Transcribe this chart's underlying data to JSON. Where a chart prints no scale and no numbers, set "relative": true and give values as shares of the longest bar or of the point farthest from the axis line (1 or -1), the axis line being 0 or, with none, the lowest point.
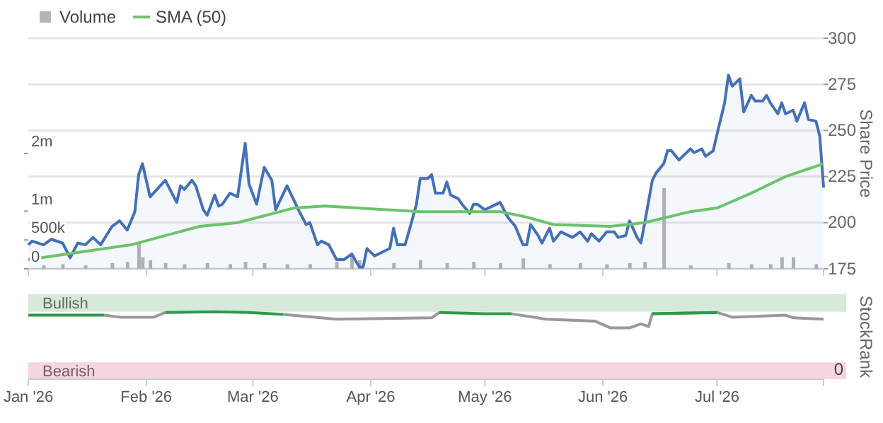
{
  "chart_data": [
    {
      "type": "area",
      "ylabel": "Share Price",
      "tick_labels": "y",
      "grid": "y",
      "legend": "top left",
      "xlim": [
        "2026-01-01",
        "2026-07-29"
      ],
      "xticks": [
        {
          "value": "2026-01-01",
          "label": null
        },
        {
          "value": "2026-02-01",
          "label": null
        },
        {
          "value": "2026-03-01",
          "label": null
        },
        {
          "value": "2026-04-01",
          "label": null
        },
        {
          "value": "2026-05-01",
          "label": null
        },
        {
          "value": "2026-06-01",
          "label": null
        },
        {
          "value": "2026-07-01",
          "label": null
        }
      ],
      "ylim": [
        175,
        300
      ],
      "yticks": [
        175,
        200,
        225,
        250,
        275,
        300
      ],
      "y2lim": [
        0,
        4000000
      ],
      "y2ticks": [
        {
          "value": 0,
          "label": "0"
        },
        {
          "value": 500000,
          "label": "500k"
        },
        {
          "value": 1000000,
          "label": "1m"
        },
        {
          "value": 2000000,
          "label": "2m"
        }
      ],
      "series": [
        {
          "type": "bar",
          "name": "Volume",
          "color": "#b4b4b8",
          "axis": "y2",
          "x": [
            "2026-01-05",
            "2026-01-10",
            "2026-01-16",
            "2026-01-23",
            "2026-01-27",
            "2026-01-30",
            "2026-01-31",
            "2026-02-02",
            "2026-02-06",
            "2026-02-11",
            "2026-02-17",
            "2026-02-23",
            "2026-02-27",
            "2026-03-04",
            "2026-03-10",
            "2026-03-16",
            "2026-03-23",
            "2026-03-27",
            "2026-03-29",
            "2026-04-07",
            "2026-04-14",
            "2026-04-21",
            "2026-04-28",
            "2026-05-05",
            "2026-05-11",
            "2026-05-18",
            "2026-05-26",
            "2026-06-02",
            "2026-06-08",
            "2026-06-12",
            "2026-06-17",
            "2026-06-24",
            "2026-07-04",
            "2026-07-10",
            "2026-07-15",
            "2026-07-18",
            "2026-07-21",
            "2026-07-27"
          ],
          "values": [
            60000,
            80000,
            60000,
            100000,
            120000,
            450000,
            200000,
            150000,
            100000,
            80000,
            100000,
            80000,
            120000,
            100000,
            80000,
            80000,
            120000,
            250000,
            150000,
            100000,
            150000,
            100000,
            120000,
            100000,
            180000,
            80000,
            100000,
            80000,
            100000,
            120000,
            1400000,
            60000,
            100000,
            80000,
            80000,
            200000,
            200000,
            80000
          ]
        },
        {
          "color": "#4470b8",
          "x": [
            "2026-01-01",
            "2026-01-02",
            "2026-01-05",
            "2026-01-07",
            "2026-01-10",
            "2026-01-12",
            "2026-01-14",
            "2026-01-16",
            "2026-01-18",
            "2026-01-20",
            "2026-01-23",
            "2026-01-25",
            "2026-01-27",
            "2026-01-29",
            "2026-01-30",
            "2026-01-31",
            "2026-02-02",
            "2026-02-06",
            "2026-02-09",
            "2026-02-10",
            "2026-02-11",
            "2026-02-13",
            "2026-02-14",
            "2026-02-16",
            "2026-02-17",
            "2026-02-19",
            "2026-02-20",
            "2026-02-21",
            "2026-02-23",
            "2026-02-25",
            "2026-02-27",
            "2026-02-28",
            "2026-03-02",
            "2026-03-04",
            "2026-03-06",
            "2026-03-07",
            "2026-03-10",
            "2026-03-13",
            "2026-03-15",
            "2026-03-16",
            "2026-03-18",
            "2026-03-19",
            "2026-03-21",
            "2026-03-23",
            "2026-03-25",
            "2026-03-27",
            "2026-03-29",
            "2026-03-30",
            "2026-03-31",
            "2026-04-02",
            "2026-04-06",
            "2026-04-07",
            "2026-04-08",
            "2026-04-10",
            "2026-04-11",
            "2026-04-13",
            "2026-04-14",
            "2026-04-16",
            "2026-04-17",
            "2026-04-18",
            "2026-04-20",
            "2026-04-21",
            "2026-04-22",
            "2026-04-24",
            "2026-04-25",
            "2026-04-27",
            "2026-04-28",
            "2026-04-29",
            "2026-05-01",
            "2026-05-03",
            "2026-05-05",
            "2026-05-07",
            "2026-05-09",
            "2026-05-11",
            "2026-05-12",
            "2026-05-13",
            "2026-05-15",
            "2026-05-16",
            "2026-05-18",
            "2026-05-19",
            "2026-05-21",
            "2026-05-24",
            "2026-05-26",
            "2026-05-28",
            "2026-05-29",
            "2026-05-31",
            "2026-06-02",
            "2026-06-04",
            "2026-06-05",
            "2026-06-07",
            "2026-06-08",
            "2026-06-10",
            "2026-06-11",
            "2026-06-12",
            "2026-06-14",
            "2026-06-15",
            "2026-06-17",
            "2026-06-18",
            "2026-06-19",
            "2026-06-21",
            "2026-06-24",
            "2026-06-25",
            "2026-06-27",
            "2026-06-28",
            "2026-06-30",
            "2026-07-01",
            "2026-07-03",
            "2026-07-04",
            "2026-07-05",
            "2026-07-07",
            "2026-07-08",
            "2026-07-10",
            "2026-07-11",
            "2026-07-13",
            "2026-07-14",
            "2026-07-15",
            "2026-07-17",
            "2026-07-18",
            "2026-07-19",
            "2026-07-21",
            "2026-07-22",
            "2026-07-24",
            "2026-07-25",
            "2026-07-27",
            "2026-07-28",
            "2026-07-29"
          ],
          "values": [
            188,
            190,
            188,
            191,
            189,
            181,
            189,
            188,
            192,
            188,
            198,
            201,
            196,
            206,
            226,
            232,
            214,
            223,
            211,
            220,
            218,
            223,
            220,
            207,
            204,
            215,
            209,
            210,
            216,
            214,
            243,
            221,
            210,
            230,
            223,
            207,
            220,
            207,
            199,
            200,
            188,
            190,
            188,
            180,
            180,
            183,
            176,
            176,
            186,
            182,
            186,
            197,
            188,
            188,
            195,
            210,
            224,
            224,
            226,
            216,
            216,
            222,
            215,
            213,
            210,
            205,
            210,
            210,
            207,
            209,
            211,
            203,
            198,
            188,
            188,
            199,
            193,
            189,
            197,
            190,
            195,
            192,
            195,
            190,
            194,
            190,
            195,
            195,
            192,
            193,
            201,
            192,
            189,
            200,
            223,
            227,
            232,
            239,
            239,
            234,
            240,
            238,
            240,
            236,
            239,
            248,
            265,
            280,
            274,
            278,
            260,
            269,
            266,
            266,
            269,
            265,
            259,
            265,
            259,
            261,
            255,
            265,
            256,
            255,
            247,
            219
          ]
        },
        {
          "type": "line",
          "name": "SMA (50)",
          "color": "#6cc36c",
          "x": [
            "2026-01-01",
            "2026-01-28",
            "2026-02-15",
            "2026-02-25",
            "2026-03-12",
            "2026-03-20",
            "2026-04-14",
            "2026-05-05",
            "2026-05-12",
            "2026-05-19",
            "2026-06-03",
            "2026-06-12",
            "2026-06-24",
            "2026-07-01",
            "2026-07-10",
            "2026-07-19",
            "2026-07-29"
          ],
          "values": [
            180,
            188,
            198,
            200,
            208,
            209,
            206,
            206,
            203,
            199,
            198,
            200,
            206,
            208,
            216,
            225,
            232
          ]
        }
      ]
    },
    {
      "type": "line",
      "ylabel": "StockRank",
      "xlim": [
        "2026-01-01",
        "2026-07-29"
      ],
      "xticks": [
        {
          "value": "2026-01-01",
          "label": "Jan '26"
        },
        {
          "value": "2026-02-01",
          "label": "Feb '26"
        },
        {
          "value": "2026-03-01",
          "label": "Mar '26"
        },
        {
          "value": "2026-04-01",
          "label": "Apr '26"
        },
        {
          "value": "2026-05-01",
          "label": "May '26"
        },
        {
          "value": "2026-06-01",
          "label": "Jun '26"
        },
        {
          "value": "2026-07-01",
          "label": "Jul '26"
        }
      ],
      "relative": true,
      "annotations": [
        "0"
      ],
      "bands": [
        {
          "axis": "y",
          "from": 1,
          "to": 1.26,
          "label": "Bullish",
          "color": "#d6e9da"
        },
        {
          "axis": "y",
          "from": 0,
          "to": 0.25,
          "label": "Bearish",
          "color": "#f6d7de"
        }
      ],
      "x": [
        "2026-01-01",
        "2026-01-10",
        "2026-01-21",
        "2026-01-25",
        "2026-02-03",
        "2026-02-06",
        "2026-02-19",
        "2026-02-28",
        "2026-03-09",
        "2026-03-23",
        "2026-04-17",
        "2026-04-19",
        "2026-05-01",
        "2026-05-08",
        "2026-05-17",
        "2026-05-30",
        "2026-06-03",
        "2026-06-08",
        "2026-06-11",
        "2026-06-13",
        "2026-06-14",
        "2026-07-01",
        "2026-07-05",
        "2026-07-19",
        "2026-07-21",
        "2026-07-29"
      ],
      "series": [
        {
          "color": "#999999",
          "values": [
            null,
            null,
            0.95,
            0.92,
            0.92,
            0.99,
            null,
            null,
            0.96,
            0.89,
            0.91,
            0.99,
            null,
            0.97,
            0.89,
            0.86,
            0.76,
            0.76,
            0.82,
            0.78,
            0.97,
            0.99,
            0.92,
            0.95,
            0.91,
            0.89
          ]
        },
        {
          "color": "#2e9a4a",
          "values": [
            0.95,
            0.95,
            0.95,
            null,
            null,
            0.99,
            1,
            0.99,
            0.96,
            null,
            null,
            0.99,
            0.97,
            0.97,
            null,
            null,
            null,
            null,
            null,
            null,
            0.97,
            0.99,
            null,
            null,
            null,
            null
          ]
        }
      ]
    }
  ]
}
